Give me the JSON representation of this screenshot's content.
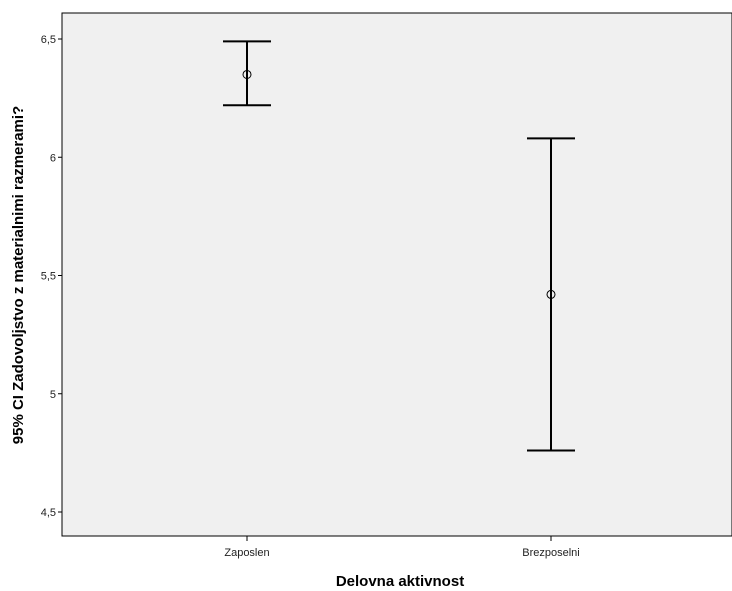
{
  "chart_data": {
    "type": "errorbar",
    "xlabel": "Delovna aktivnost",
    "ylabel": "95% CI Zadovoljstvo z materialnimi razmerami?",
    "categories": [
      "Zaposlen",
      "Brezposelni"
    ],
    "points": [
      {
        "category": "Zaposlen",
        "mean": 6.35,
        "lower": 6.22,
        "upper": 6.49
      },
      {
        "category": "Brezposelni",
        "mean": 5.42,
        "lower": 4.76,
        "upper": 6.08
      }
    ],
    "ylim": [
      4.43,
      6.62
    ],
    "yticks": [
      4.5,
      5,
      5.5,
      6,
      6.5
    ],
    "ytick_labels": [
      "4,5",
      "5",
      "5,5",
      "6",
      "6,5"
    ],
    "grid": false,
    "legend": "none",
    "colors": {
      "plot_background": "#f0f0f0",
      "marks": "#000000"
    }
  }
}
